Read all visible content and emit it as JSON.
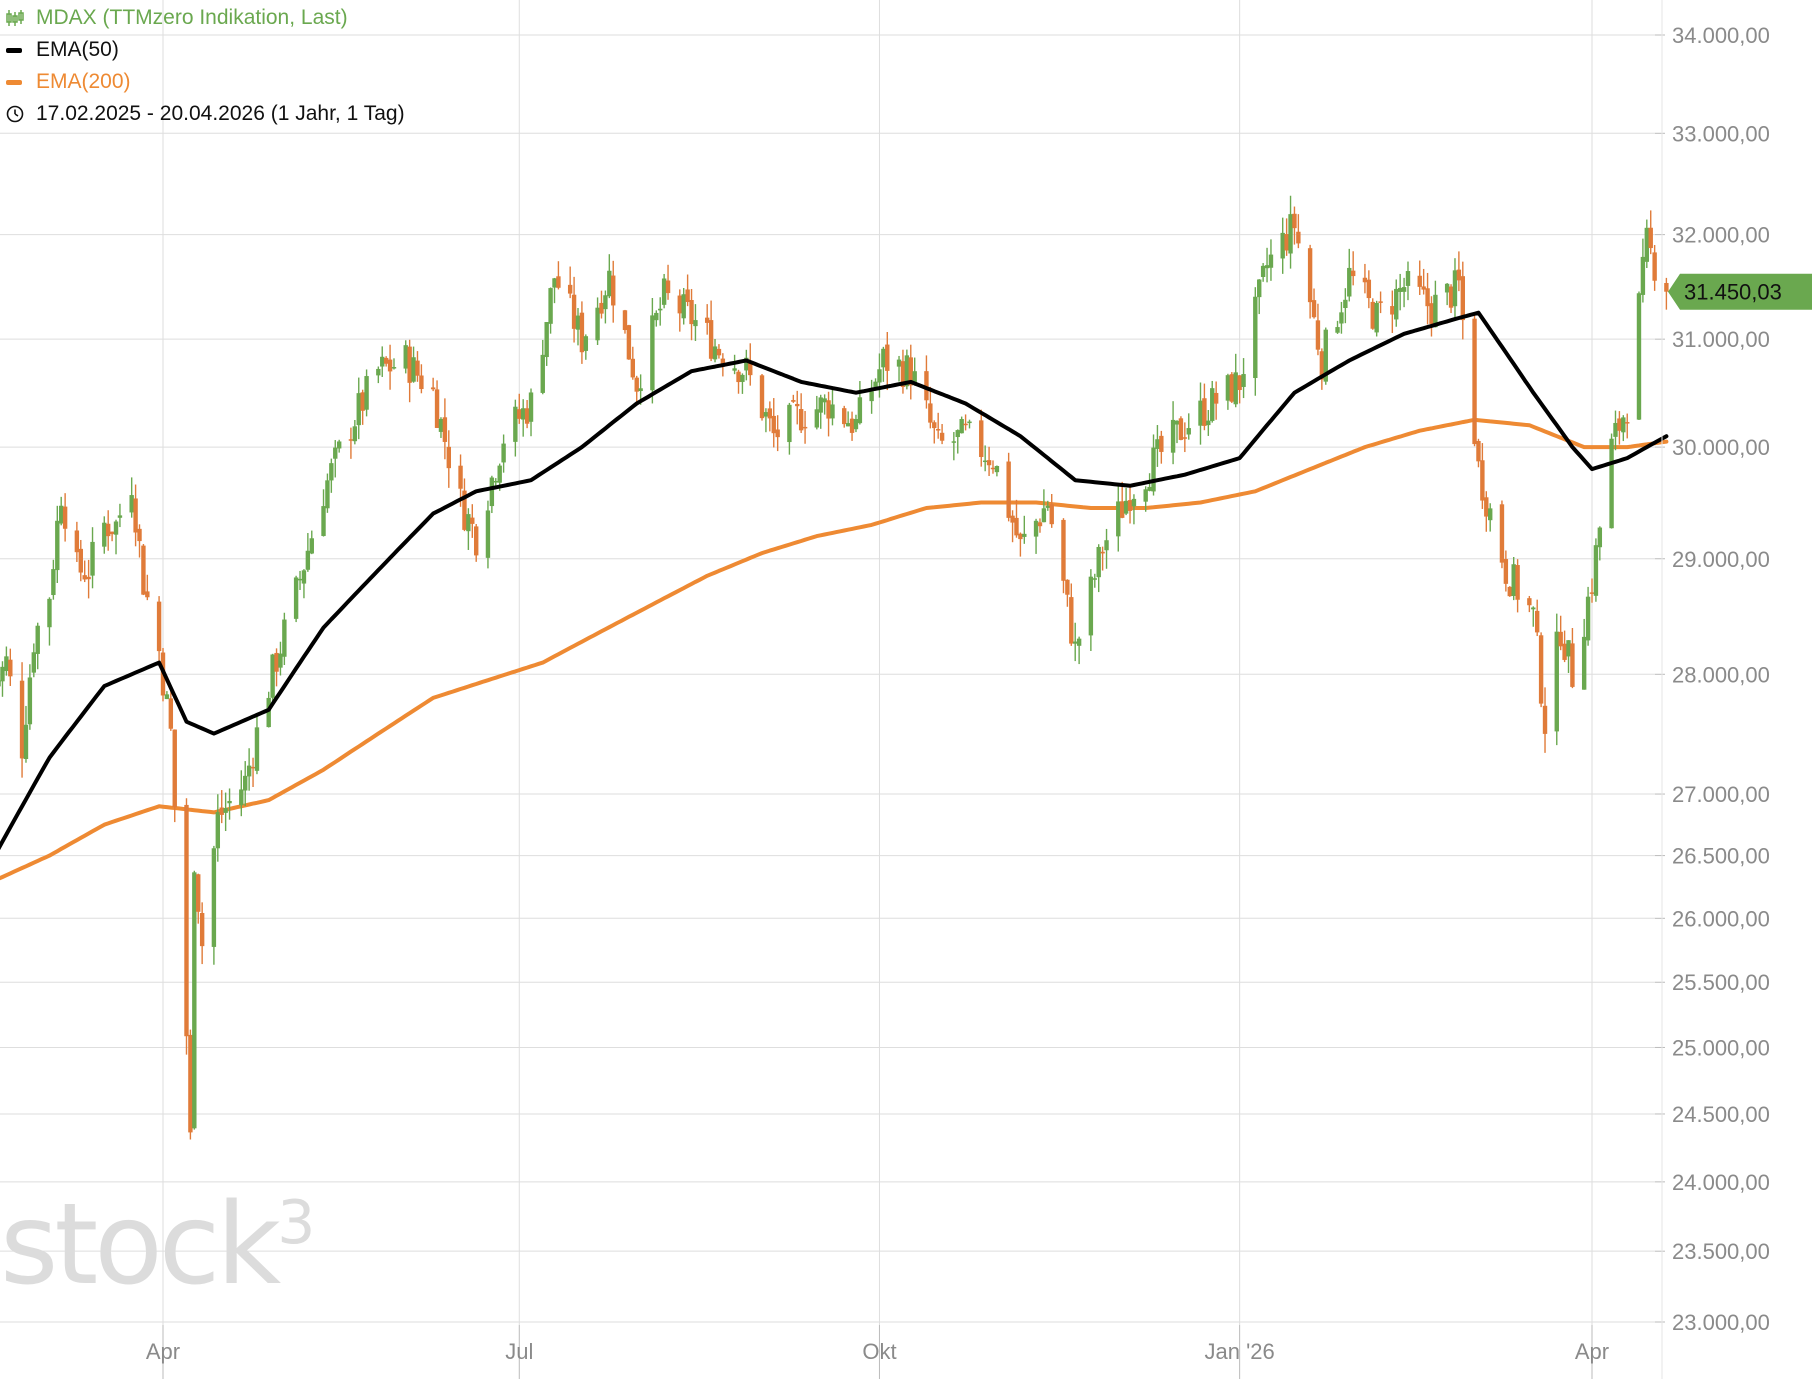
{
  "legend": {
    "instrument": "MDAX (TTMzero Indikation, Last)",
    "ema50": "EMA(50)",
    "ema200": "EMA(200)",
    "range": "17.02.2025 - 20.04.2026   (1 Jahr, 1 Tag)"
  },
  "watermark": "stock",
  "watermark_sup": "3",
  "last_price_label": "31.450,03",
  "colors": {
    "up": "#6aa84f",
    "down": "#e07b39",
    "ema50": "#000000",
    "ema200": "#ee8a33",
    "grid": "#dedede",
    "price_tag": "#6aa84f"
  },
  "chart_data": {
    "type": "candlestick",
    "x_axis": {
      "ticks": [
        "Apr",
        "Jul",
        "Okt",
        "Jan '26",
        "Apr"
      ],
      "tick_dates": [
        "2025-04-01",
        "2025-07-01",
        "2025-10-01",
        "2026-01-01",
        "2026-04-01"
      ],
      "range": [
        "2025-02-17",
        "2026-04-20"
      ]
    },
    "y_axis": {
      "scale": "log",
      "range": [
        22900,
        34200
      ],
      "ticks": [
        23000,
        23500,
        24000,
        24500,
        25000,
        25500,
        26000,
        26500,
        27000,
        28000,
        29000,
        30000,
        31000,
        32000,
        33000,
        34000
      ],
      "tick_labels": [
        "23.000,00",
        "23.500,00",
        "24.000,00",
        "24.500,00",
        "25.000,00",
        "25.500,00",
        "26.000,00",
        "26.500,00",
        "27.000,00",
        "28.000,00",
        "29.000,00",
        "30.000,00",
        "31.000,00",
        "32.000,00",
        "33.000,00",
        "34.000,00"
      ]
    },
    "grid": true,
    "last_price": 31450.03,
    "close_anchors": [
      [
        "2025-02-17",
        27900
      ],
      [
        "2025-02-20",
        28100
      ],
      [
        "2025-02-24",
        27400
      ],
      [
        "2025-02-27",
        28300
      ],
      [
        "2025-03-03",
        28700
      ],
      [
        "2025-03-06",
        29600
      ],
      [
        "2025-03-10",
        28900
      ],
      [
        "2025-03-13",
        28900
      ],
      [
        "2025-03-17",
        29300
      ],
      [
        "2025-03-20",
        29300
      ],
      [
        "2025-03-24",
        29700
      ],
      [
        "2025-03-27",
        28800
      ],
      [
        "2025-03-31",
        28200
      ],
      [
        "2025-04-03",
        27500
      ],
      [
        "2025-04-07",
        25100
      ],
      [
        "2025-04-08",
        24300
      ],
      [
        "2025-04-09",
        26500
      ],
      [
        "2025-04-11",
        25800
      ],
      [
        "2025-04-15",
        26800
      ],
      [
        "2025-04-22",
        27100
      ],
      [
        "2025-04-28",
        27900
      ],
      [
        "2025-05-05",
        28700
      ],
      [
        "2025-05-12",
        29600
      ],
      [
        "2025-05-19",
        30200
      ],
      [
        "2025-05-26",
        30700
      ],
      [
        "2025-06-02",
        30800
      ],
      [
        "2025-06-09",
        30500
      ],
      [
        "2025-06-16",
        29500
      ],
      [
        "2025-06-20",
        29200
      ],
      [
        "2025-06-27",
        30100
      ],
      [
        "2025-07-04",
        30400
      ],
      [
        "2025-07-10",
        31600
      ],
      [
        "2025-07-17",
        31000
      ],
      [
        "2025-07-24",
        31600
      ],
      [
        "2025-07-31",
        30600
      ],
      [
        "2025-08-07",
        31400
      ],
      [
        "2025-08-14",
        31200
      ],
      [
        "2025-08-21",
        30900
      ],
      [
        "2025-08-28",
        30700
      ],
      [
        "2025-09-04",
        30100
      ],
      [
        "2025-09-11",
        30300
      ],
      [
        "2025-09-18",
        30400
      ],
      [
        "2025-09-25",
        30200
      ],
      [
        "2025-10-02",
        30800
      ],
      [
        "2025-10-09",
        30700
      ],
      [
        "2025-10-16",
        30000
      ],
      [
        "2025-10-23",
        30100
      ],
      [
        "2025-10-30",
        29900
      ],
      [
        "2025-11-06",
        29100
      ],
      [
        "2025-11-13",
        29500
      ],
      [
        "2025-11-20",
        28200
      ],
      [
        "2025-11-27",
        29100
      ],
      [
        "2025-12-04",
        29600
      ],
      [
        "2025-12-11",
        29900
      ],
      [
        "2025-12-18",
        30200
      ],
      [
        "2025-12-25",
        30400
      ],
      [
        "2026-01-01",
        30600
      ],
      [
        "2026-01-08",
        31700
      ],
      [
        "2026-01-15",
        32100
      ],
      [
        "2026-01-22",
        30800
      ],
      [
        "2026-01-29",
        31600
      ],
      [
        "2026-02-05",
        31200
      ],
      [
        "2026-02-12",
        31500
      ],
      [
        "2026-02-19",
        31300
      ],
      [
        "2026-02-26",
        31500
      ],
      [
        "2026-03-03",
        29800
      ],
      [
        "2026-03-10",
        28900
      ],
      [
        "2026-03-17",
        28500
      ],
      [
        "2026-03-20",
        27600
      ],
      [
        "2026-03-24",
        28400
      ],
      [
        "2026-03-27",
        28000
      ],
      [
        "2026-04-01",
        28800
      ],
      [
        "2026-04-06",
        30000
      ],
      [
        "2026-04-10",
        30400
      ],
      [
        "2026-04-15",
        31900
      ],
      [
        "2026-04-20",
        31450
      ]
    ],
    "ema50": [
      [
        "2025-02-17",
        26500
      ],
      [
        "2025-03-03",
        27300
      ],
      [
        "2025-03-17",
        27900
      ],
      [
        "2025-03-31",
        28100
      ],
      [
        "2025-04-07",
        27600
      ],
      [
        "2025-04-14",
        27500
      ],
      [
        "2025-04-28",
        27700
      ],
      [
        "2025-05-12",
        28400
      ],
      [
        "2025-05-26",
        28900
      ],
      [
        "2025-06-09",
        29400
      ],
      [
        "2025-06-20",
        29600
      ],
      [
        "2025-07-04",
        29700
      ],
      [
        "2025-07-17",
        30000
      ],
      [
        "2025-07-31",
        30400
      ],
      [
        "2025-08-14",
        30700
      ],
      [
        "2025-08-28",
        30800
      ],
      [
        "2025-09-11",
        30600
      ],
      [
        "2025-09-25",
        30500
      ],
      [
        "2025-10-09",
        30600
      ],
      [
        "2025-10-23",
        30400
      ],
      [
        "2025-11-06",
        30100
      ],
      [
        "2025-11-20",
        29700
      ],
      [
        "2025-12-04",
        29650
      ],
      [
        "2025-12-18",
        29750
      ],
      [
        "2026-01-01",
        29900
      ],
      [
        "2026-01-15",
        30500
      ],
      [
        "2026-01-29",
        30800
      ],
      [
        "2026-02-12",
        31050
      ],
      [
        "2026-02-26",
        31200
      ],
      [
        "2026-03-03",
        31250
      ],
      [
        "2026-03-17",
        30500
      ],
      [
        "2026-03-27",
        30000
      ],
      [
        "2026-04-01",
        29800
      ],
      [
        "2026-04-10",
        29900
      ],
      [
        "2026-04-20",
        30100
      ]
    ],
    "ema200": [
      [
        "2025-02-17",
        26300
      ],
      [
        "2025-03-03",
        26500
      ],
      [
        "2025-03-17",
        26750
      ],
      [
        "2025-03-31",
        26900
      ],
      [
        "2025-04-14",
        26850
      ],
      [
        "2025-04-28",
        26950
      ],
      [
        "2025-05-12",
        27200
      ],
      [
        "2025-05-26",
        27500
      ],
      [
        "2025-06-09",
        27800
      ],
      [
        "2025-06-23",
        27950
      ],
      [
        "2025-07-07",
        28100
      ],
      [
        "2025-07-21",
        28350
      ],
      [
        "2025-08-04",
        28600
      ],
      [
        "2025-08-18",
        28850
      ],
      [
        "2025-09-01",
        29050
      ],
      [
        "2025-09-15",
        29200
      ],
      [
        "2025-09-29",
        29300
      ],
      [
        "2025-10-13",
        29450
      ],
      [
        "2025-10-27",
        29500
      ],
      [
        "2025-11-10",
        29500
      ],
      [
        "2025-11-24",
        29450
      ],
      [
        "2025-12-08",
        29450
      ],
      [
        "2025-12-22",
        29500
      ],
      [
        "2026-01-05",
        29600
      ],
      [
        "2026-01-19",
        29800
      ],
      [
        "2026-02-02",
        30000
      ],
      [
        "2026-02-16",
        30150
      ],
      [
        "2026-03-02",
        30250
      ],
      [
        "2026-03-16",
        30200
      ],
      [
        "2026-03-30",
        30000
      ],
      [
        "2026-04-10",
        30000
      ],
      [
        "2026-04-20",
        30050
      ]
    ]
  }
}
